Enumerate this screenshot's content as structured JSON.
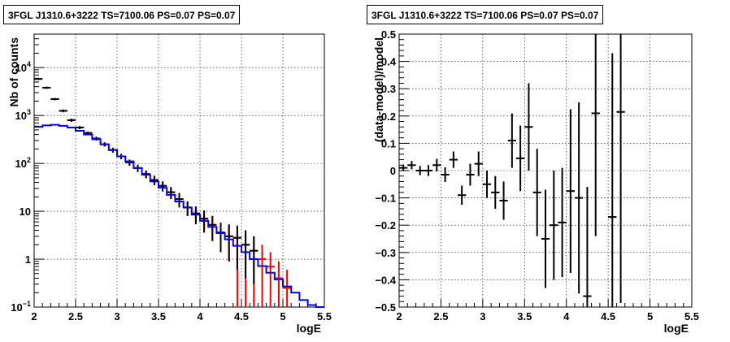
{
  "chart_data": [
    {
      "type": "histogram",
      "title": "3FGL J1310.6+3222 TS=7100.06 PS=0.07 PS=0.07",
      "xlabel": "logE",
      "ylabel": "Nb of counts",
      "xlim": [
        2,
        5.5
      ],
      "ylim": [
        0.1,
        50000
      ],
      "yscale": "log",
      "grid": true,
      "xticks": [
        "2",
        "2.5",
        "3",
        "3.5",
        "4",
        "4.5",
        "5",
        "5.5"
      ],
      "yticks": [
        {
          "value": 0.1,
          "label": "10^-1"
        },
        {
          "value": 1,
          "label": "1"
        },
        {
          "value": 10,
          "label": "10"
        },
        {
          "value": 100,
          "label": "10^2"
        },
        {
          "value": 1000,
          "label": "10^3"
        },
        {
          "value": 10000,
          "label": "10^4"
        }
      ],
      "series": [
        {
          "role": "model",
          "color": "#0000ff",
          "bin_edges": [
            2.0,
            2.1,
            2.2,
            2.3,
            2.4,
            2.5,
            2.6,
            2.7,
            2.8,
            2.9,
            3.0,
            3.1,
            3.2,
            3.3,
            3.4,
            3.5,
            3.6,
            3.7,
            3.8,
            3.9,
            4.0,
            4.1,
            4.2,
            4.3,
            4.4,
            4.5,
            4.6,
            4.7,
            4.8,
            4.9,
            5.0,
            5.1,
            5.2,
            5.3,
            5.4,
            5.5
          ],
          "values": [
            580,
            620,
            640,
            610,
            560,
            480,
            400,
            320,
            250,
            190,
            140,
            110,
            80,
            58,
            42,
            31,
            22,
            16,
            12,
            8.5,
            6.3,
            4.7,
            3.5,
            2.6,
            1.9,
            1.4,
            1.0,
            0.72,
            0.52,
            0.38,
            0.27,
            0.2,
            0.14,
            0.11,
            0.1
          ]
        },
        {
          "role": "data",
          "color": "#000000",
          "x": [
            2.05,
            2.15,
            2.25,
            2.35,
            2.45,
            2.55,
            2.65,
            2.75,
            2.85,
            2.95,
            3.05,
            3.15,
            3.25,
            3.35,
            3.45,
            3.55,
            3.65,
            3.75,
            3.85,
            3.95,
            4.05,
            4.15,
            4.25,
            4.35,
            4.45,
            4.55,
            4.65
          ],
          "y": [
            5800,
            3800,
            2200,
            1250,
            800,
            560,
            430,
            330,
            250,
            190,
            140,
            105,
            80,
            60,
            45,
            34,
            25,
            18,
            12,
            9,
            7,
            5.2,
            3.6,
            3,
            2.8,
            2,
            1.5
          ],
          "err_low": [
            5500,
            3600,
            2080,
            1170,
            740,
            520,
            400,
            300,
            225,
            168,
            122,
            90,
            66,
            49,
            35,
            26,
            18,
            12,
            8,
            5.4,
            3.6,
            2.4,
            1.4,
            0.9,
            0.6,
            0.4,
            0.3
          ],
          "err_high": [
            6100,
            4000,
            2320,
            1330,
            860,
            600,
            460,
            360,
            275,
            212,
            158,
            120,
            94,
            71,
            55,
            42,
            32,
            24,
            16,
            12.6,
            10.4,
            8,
            5.8,
            5.3,
            5,
            4,
            3
          ]
        },
        {
          "role": "data-red",
          "color": "#ff0000",
          "x": [
            2.05,
            2.15,
            2.25,
            2.35,
            2.45,
            2.55,
            2.65,
            2.75,
            2.85,
            2.95,
            3.05,
            3.15,
            3.25,
            3.35,
            3.45,
            3.55,
            3.65,
            3.75,
            3.85,
            3.95,
            4.05,
            4.15,
            4.25,
            4.35,
            4.45,
            4.55,
            4.65,
            4.75,
            4.85,
            4.95,
            5.05
          ],
          "y": [
            5800,
            3800,
            2200,
            1250,
            800,
            560,
            430,
            330,
            250,
            190,
            140,
            105,
            80,
            60,
            45,
            34,
            25,
            18,
            12,
            9,
            7,
            5.2,
            3.6,
            3,
            2.8,
            2,
            1.5,
            1.0,
            0.7,
            0.4,
            0.25
          ],
          "err_low": [
            5500,
            3600,
            2080,
            1170,
            740,
            520,
            400,
            300,
            225,
            168,
            122,
            90,
            66,
            49,
            35,
            26,
            18,
            12,
            8,
            5.4,
            3.6,
            2.4,
            1.4,
            0.9,
            0.1,
            0.1,
            0.1,
            0.1,
            0.1,
            0.1,
            0.1
          ],
          "err_high": [
            6100,
            4000,
            2320,
            1330,
            860,
            600,
            460,
            360,
            275,
            212,
            158,
            120,
            94,
            71,
            55,
            42,
            32,
            24,
            16,
            12.6,
            10.4,
            8,
            5.8,
            5.3,
            5,
            4,
            3,
            2,
            1.4,
            0.9,
            0.6
          ]
        }
      ]
    },
    {
      "type": "scatter",
      "title": "3FGL J1310.6+3222 TS=7100.06 PS=0.07 PS=0.07",
      "xlabel": "logE",
      "ylabel": "(data-model)/model",
      "xlim": [
        2,
        5.5
      ],
      "ylim": [
        -0.5,
        0.5
      ],
      "grid": true,
      "xticks": [
        "2",
        "2.5",
        "3",
        "3.5",
        "4",
        "4.5",
        "5",
        "5.5"
      ],
      "yticks": [
        "−0.5",
        "−0.4",
        "−0.3",
        "−0.2",
        "−0.1",
        "0",
        "0.1",
        "0.2",
        "0.3",
        "0.4",
        "0.5"
      ],
      "series": [
        {
          "color": "#000000",
          "x": [
            2.05,
            2.15,
            2.25,
            2.35,
            2.45,
            2.55,
            2.65,
            2.75,
            2.85,
            2.95,
            3.05,
            3.15,
            3.25,
            3.35,
            3.45,
            3.55,
            3.65,
            3.75,
            3.85,
            3.95,
            4.05,
            4.15,
            4.25,
            4.35,
            4.55,
            4.65
          ],
          "y": [
            0.01,
            0.02,
            0.0,
            0.0,
            0.02,
            -0.015,
            0.04,
            -0.09,
            -0.015,
            0.025,
            -0.05,
            -0.08,
            -0.11,
            0.11,
            0.045,
            0.16,
            -0.08,
            -0.25,
            -0.2,
            -0.19,
            -0.075,
            -0.1,
            -0.46,
            0.21,
            -0.17,
            0.215
          ],
          "err": [
            0.012,
            0.015,
            0.017,
            0.02,
            0.023,
            0.027,
            0.03,
            0.035,
            0.04,
            0.045,
            0.05,
            0.06,
            0.07,
            0.1,
            0.12,
            0.16,
            0.16,
            0.18,
            0.2,
            0.2,
            0.3,
            0.35,
            0.4,
            0.45,
            0.6,
            0.7
          ]
        }
      ]
    }
  ]
}
